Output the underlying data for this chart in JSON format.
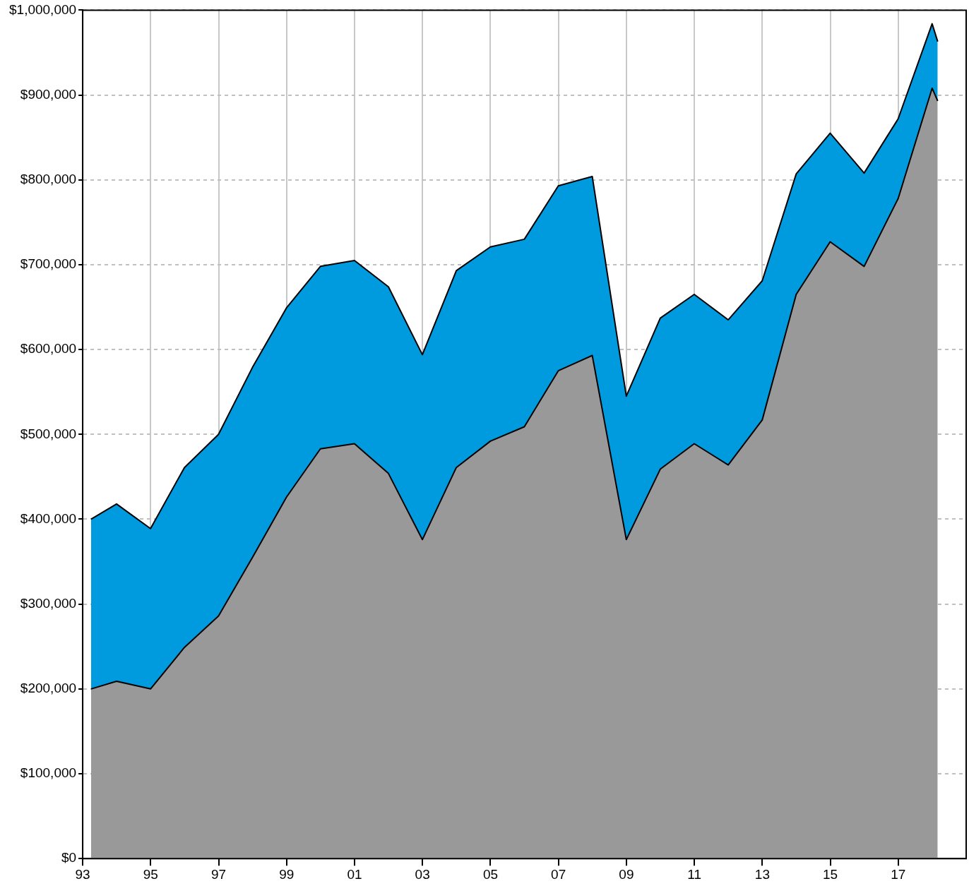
{
  "chart_data": {
    "type": "area",
    "stacked": true,
    "x": [
      "1993-04-01",
      "1993-12-31",
      "1994-12-31",
      "1995-12-31",
      "1996-12-31",
      "1997-12-31",
      "1998-12-31",
      "1999-12-31",
      "2000-12-31",
      "2001-12-31",
      "2002-12-31",
      "2003-12-31",
      "2004-12-31",
      "2005-12-31",
      "2006-12-31",
      "2007-12-31",
      "2008-12-31",
      "2009-12-31",
      "2010-12-31",
      "2011-12-31",
      "2012-12-31",
      "2013-12-31",
      "2014-12-31",
      "2015-12-31",
      "2016-12-31",
      "2017-12-31",
      "2018-03-01"
    ],
    "series": [
      {
        "color": "#999999",
        "values": [
          200000,
          209000,
          200000,
          249000,
          286000,
          355000,
          426000,
          483000,
          489000,
          454000,
          376000,
          461000,
          492000,
          509000,
          575000,
          593000,
          376000,
          459000,
          489000,
          464000,
          517000,
          665000,
          727000,
          698000,
          778000,
          908000,
          893000
        ]
      },
      {
        "color": "#009bde",
        "values": [
          200000,
          209000,
          189000,
          212000,
          214000,
          224000,
          223000,
          215000,
          216000,
          220000,
          218000,
          232000,
          229000,
          221000,
          218000,
          211000,
          169000,
          178000,
          176000,
          171000,
          164000,
          142000,
          128000,
          110000,
          94000,
          76000,
          70000
        ]
      }
    ],
    "xlim": [
      "1993-01-01",
      "2019-01-01"
    ],
    "xticks": [
      {
        "value": "1993-01-01",
        "label": "93"
      },
      {
        "value": "1995-01-01",
        "label": "95"
      },
      {
        "value": "1997-01-01",
        "label": "97"
      },
      {
        "value": "1999-01-01",
        "label": "99"
      },
      {
        "value": "2001-01-01",
        "label": "01"
      },
      {
        "value": "2003-01-01",
        "label": "03"
      },
      {
        "value": "2005-01-01",
        "label": "05"
      },
      {
        "value": "2007-01-01",
        "label": "07"
      },
      {
        "value": "2009-01-01",
        "label": "09"
      },
      {
        "value": "2011-01-01",
        "label": "11"
      },
      {
        "value": "2013-01-01",
        "label": "13"
      },
      {
        "value": "2015-01-01",
        "label": "15"
      },
      {
        "value": "2017-01-01",
        "label": "17"
      }
    ],
    "ylim": [
      0,
      1000000
    ],
    "yticks": [
      {
        "value": 0,
        "label": "$0"
      },
      {
        "value": 100000,
        "label": "$100,000"
      },
      {
        "value": 200000,
        "label": "$200,000"
      },
      {
        "value": 300000,
        "label": "$300,000"
      },
      {
        "value": 400000,
        "label": "$400,000"
      },
      {
        "value": 500000,
        "label": "$500,000"
      },
      {
        "value": 600000,
        "label": "$600,000"
      },
      {
        "value": 700000,
        "label": "$700,000"
      },
      {
        "value": 800000,
        "label": "$800,000"
      },
      {
        "value": 900000,
        "label": "$900,000"
      },
      {
        "value": 1000000,
        "label": "$1,000,000"
      }
    ],
    "grid": true,
    "legend": false
  }
}
